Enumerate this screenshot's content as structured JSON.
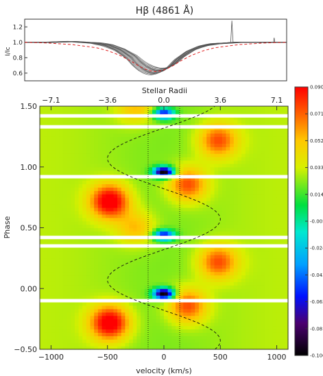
{
  "chart_data": [
    {
      "type": "line",
      "title": "Hβ (4861 Å)",
      "ylabel": "I/Ic",
      "ylim": [
        0.5,
        1.3
      ],
      "yticks": [
        "0.6",
        "0.8",
        "1.0",
        "1.2"
      ],
      "xlim": [
        -1100,
        1100
      ],
      "series": [
        {
          "role": "individual profiles",
          "color": "#555555",
          "count": 16,
          "x": [
            -1100,
            -900,
            -700,
            -500,
            -400,
            -300,
            -200,
            -150,
            -100,
            -50,
            0,
            50,
            100,
            150,
            200,
            300,
            400,
            500,
            700,
            900,
            1100
          ],
          "y": [
            1.0,
            1.0,
            1.01,
            0.99,
            0.96,
            0.9,
            0.8,
            0.72,
            0.66,
            0.62,
            0.6,
            0.61,
            0.64,
            0.7,
            0.78,
            0.89,
            0.95,
            0.98,
            1.0,
            1.0,
            1.0
          ]
        },
        {
          "role": "reference profile",
          "color": "#e02020",
          "dashed": true,
          "x": [
            -1100,
            -900,
            -700,
            -500,
            -400,
            -300,
            -200,
            -150,
            -100,
            -50,
            0,
            50,
            100,
            150,
            200,
            300,
            400,
            500,
            700,
            900,
            1100
          ],
          "y": [
            1.0,
            0.99,
            0.97,
            0.93,
            0.89,
            0.83,
            0.75,
            0.7,
            0.66,
            0.63,
            0.62,
            0.63,
            0.66,
            0.7,
            0.75,
            0.83,
            0.89,
            0.93,
            0.97,
            0.99,
            1.0
          ]
        }
      ]
    },
    {
      "type": "heatmap",
      "xlabel": "velocity (km/s)",
      "ylabel": "Phase",
      "top_axis_label": "Stellar Radii",
      "xlim": [
        -1100,
        1100
      ],
      "ylim": [
        -0.5,
        1.5
      ],
      "xticks": [
        "−1000",
        "−500",
        "0",
        "500",
        "1000"
      ],
      "yticks": [
        "−0.50",
        "0.00",
        "0.50",
        "1.00",
        "1.50"
      ],
      "top_ticks": [
        "−7.1",
        "−3.6",
        "0.0",
        "3.6",
        "7.1"
      ],
      "vsini_lines_kms": [
        -140,
        140
      ],
      "sine_curve": {
        "amplitude_kms": 500,
        "phase_offset": 0.32
      },
      "gap_phases": [
        1.42,
        1.33,
        0.92,
        0.42,
        0.35,
        -0.1
      ],
      "emission_features": [
        {
          "v": -480,
          "phase": -0.28,
          "amp": 0.075
        },
        {
          "v": -480,
          "phase": 0.72,
          "amp": 0.075
        },
        {
          "v": 210,
          "phase": -0.14,
          "amp": 0.052
        },
        {
          "v": 210,
          "phase": 0.86,
          "amp": 0.052
        },
        {
          "v": 480,
          "phase": 0.22,
          "amp": 0.05
        },
        {
          "v": 480,
          "phase": 1.22,
          "amp": 0.05
        },
        {
          "v": -250,
          "phase": 0.5,
          "amp": 0.03
        },
        {
          "v": -250,
          "phase": 1.5,
          "amp": 0.03
        }
      ],
      "absorption_features": [
        {
          "v": 0,
          "phase": -0.04,
          "amp": -0.1
        },
        {
          "v": 0,
          "phase": 0.96,
          "amp": -0.1
        },
        {
          "v": 0,
          "phase": 0.44,
          "amp": -0.07
        },
        {
          "v": 0,
          "phase": 1.44,
          "amp": -0.07
        }
      ],
      "colorbar": {
        "range": [
          -0.1,
          0.09
        ],
        "ticks": [
          "0.090",
          "0.071",
          "0.052",
          "0.033",
          "0.014",
          "-0.005",
          "-0.024",
          "-0.043",
          "-0.062",
          "-0.081",
          "-0.100"
        ]
      }
    }
  ]
}
